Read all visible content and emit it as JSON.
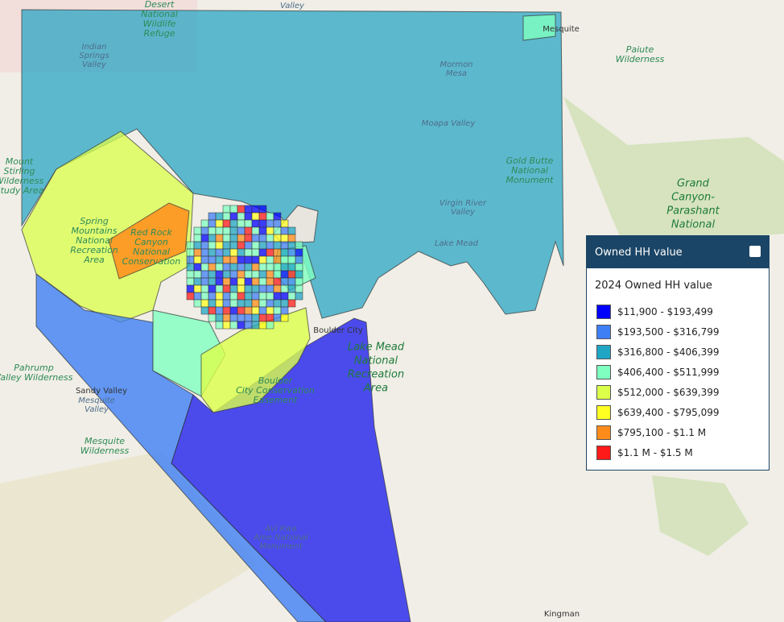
{
  "map": {
    "labels": [
      {
        "lines": [
          "Desert",
          "National",
          "Wildlife",
          "Refuge"
        ],
        "kind": "park"
      },
      {
        "lines": [
          "Indian",
          "Springs",
          "Valley"
        ],
        "kind": "valley"
      },
      {
        "lines": [
          "Valley"
        ],
        "kind": "valley"
      },
      {
        "lines": [
          "Mormon",
          "Mesa"
        ],
        "kind": "valley"
      },
      {
        "lines": [
          "Moapa Valley"
        ],
        "kind": "valley"
      },
      {
        "lines": [
          "Mesquite"
        ],
        "kind": "town"
      },
      {
        "lines": [
          "Paiute",
          "Wilderness"
        ],
        "kind": "park"
      },
      {
        "lines": [
          "Gold Butte",
          "National",
          "Monument"
        ],
        "kind": "park"
      },
      {
        "lines": [
          "Grand",
          "Canyon-",
          "Parashant",
          "National"
        ],
        "kind": "bigpark"
      },
      {
        "lines": [
          "Virgin River",
          "Valley"
        ],
        "kind": "valley"
      },
      {
        "lines": [
          "Lake Mead"
        ],
        "kind": "valley"
      },
      {
        "lines": [
          "Spring",
          "Mountains",
          "National",
          "Recreation",
          "Area"
        ],
        "kind": "park"
      },
      {
        "lines": [
          "Red Rock",
          "Canyon",
          "National",
          "Conservation"
        ],
        "kind": "park"
      },
      {
        "lines": [
          "Mount",
          "Stirling",
          "Wilderness",
          "Study Area"
        ],
        "kind": "park"
      },
      {
        "lines": [
          "Pahrump",
          "Valley Wilderness"
        ],
        "kind": "park"
      },
      {
        "lines": [
          "Sandy Valley"
        ],
        "kind": "town"
      },
      {
        "lines": [
          "Mesquite",
          "Valley"
        ],
        "kind": "valley"
      },
      {
        "lines": [
          "Mesquite",
          "Wilderness"
        ],
        "kind": "park"
      },
      {
        "lines": [
          "Boulder",
          "City Conservation",
          "Easement"
        ],
        "kind": "park"
      },
      {
        "lines": [
          "Lake Mead",
          "National",
          "Recreation",
          "Area"
        ],
        "kind": "bigpark"
      },
      {
        "lines": [
          "Boulder City"
        ],
        "kind": "town"
      },
      {
        "lines": [
          "Avi Kwa",
          "Ame National",
          "Monument"
        ],
        "kind": "valley"
      },
      {
        "lines": [
          "Kingman"
        ],
        "kind": "town"
      }
    ]
  },
  "legend": {
    "header": "Owned HH value",
    "title": "2024 Owned HH value",
    "items": [
      {
        "label": "$11,900 - $193,499",
        "color": "#0000ff"
      },
      {
        "label": "$193,500 - $316,799",
        "color": "#3f7ff5"
      },
      {
        "label": "$316,800 - $406,399",
        "color": "#1fa6c4"
      },
      {
        "label": "$406,400 - $511,999",
        "color": "#7fffc0"
      },
      {
        "label": "$512,000 - $639,399",
        "color": "#dcff4a"
      },
      {
        "label": "$639,400 - $795,099",
        "color": "#ffff22"
      },
      {
        "label": "$795,100 - $1.1 M",
        "color": "#ff8c1a"
      },
      {
        "label": "$1.1 M - $1.5 M",
        "color": "#ff1a1a"
      }
    ]
  }
}
